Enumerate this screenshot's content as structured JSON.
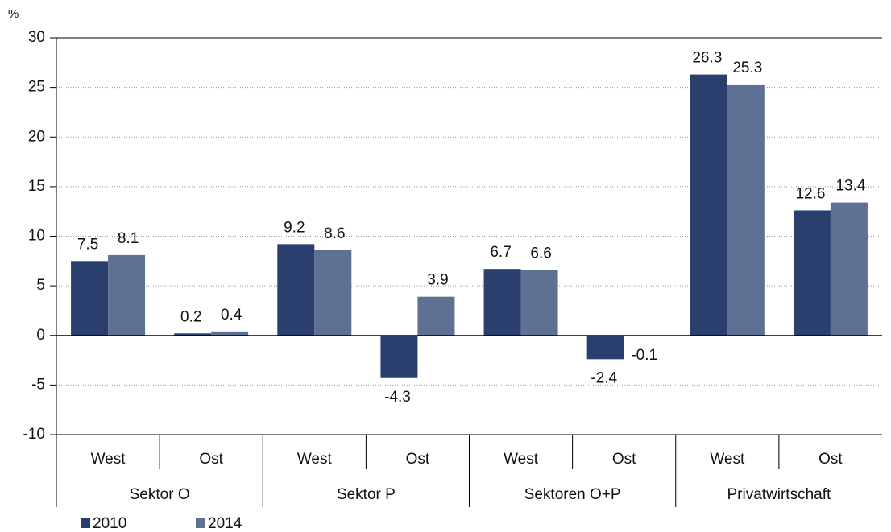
{
  "chart_data": {
    "type": "bar",
    "y_label": "%",
    "categories": [
      "West",
      "Ost",
      "West",
      "Ost",
      "West",
      "Ost",
      "West",
      "Ost"
    ],
    "groups": [
      "Sektor O",
      "Sektor P",
      "Sektoren O+P",
      "Privatwirtschaft"
    ],
    "series": [
      {
        "name": "2010",
        "color": "#2b3f6e",
        "values": [
          7.5,
          0.2,
          9.2,
          -4.3,
          6.7,
          -2.4,
          26.3,
          12.6
        ]
      },
      {
        "name": "2014",
        "color": "#5e7094",
        "values": [
          8.1,
          0.4,
          8.6,
          3.9,
          6.6,
          -0.1,
          25.3,
          13.4
        ]
      }
    ],
    "ylim": [
      -10,
      30
    ],
    "yticks": [
      -10,
      -5,
      0,
      5,
      10,
      15,
      20,
      25,
      30
    ],
    "grid": true
  }
}
